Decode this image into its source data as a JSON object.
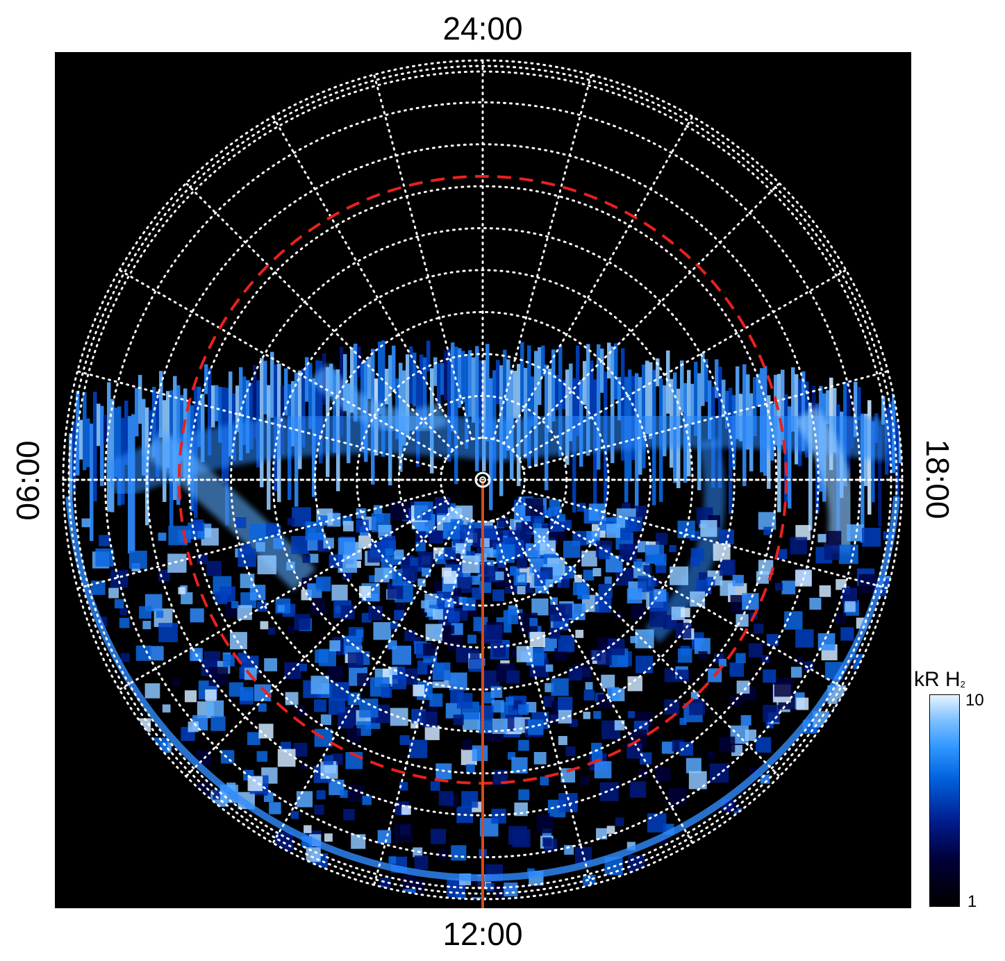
{
  "figure": {
    "local_time_labels": {
      "top": "24:00",
      "bottom": "12:00",
      "left": "06:00",
      "right": "18:00"
    },
    "colorbar": {
      "title_main": "kR H",
      "title_sub": "2",
      "max_label": "10",
      "min_label": "1",
      "colormap": [
        "#000000",
        "#00003a",
        "#001c8c",
        "#0060dd",
        "#2f96ff",
        "#7ec0ff",
        "#e6f4ff"
      ]
    },
    "colors": {
      "background": "#000000",
      "grid": "#ffffff",
      "reference_circle": "#e8211e",
      "meridian_line": "#d24a1c"
    },
    "grid": {
      "style": "dotted",
      "meridian_count": 24,
      "circle_count": 10
    },
    "projection": "polar, local time around the pole"
  }
}
